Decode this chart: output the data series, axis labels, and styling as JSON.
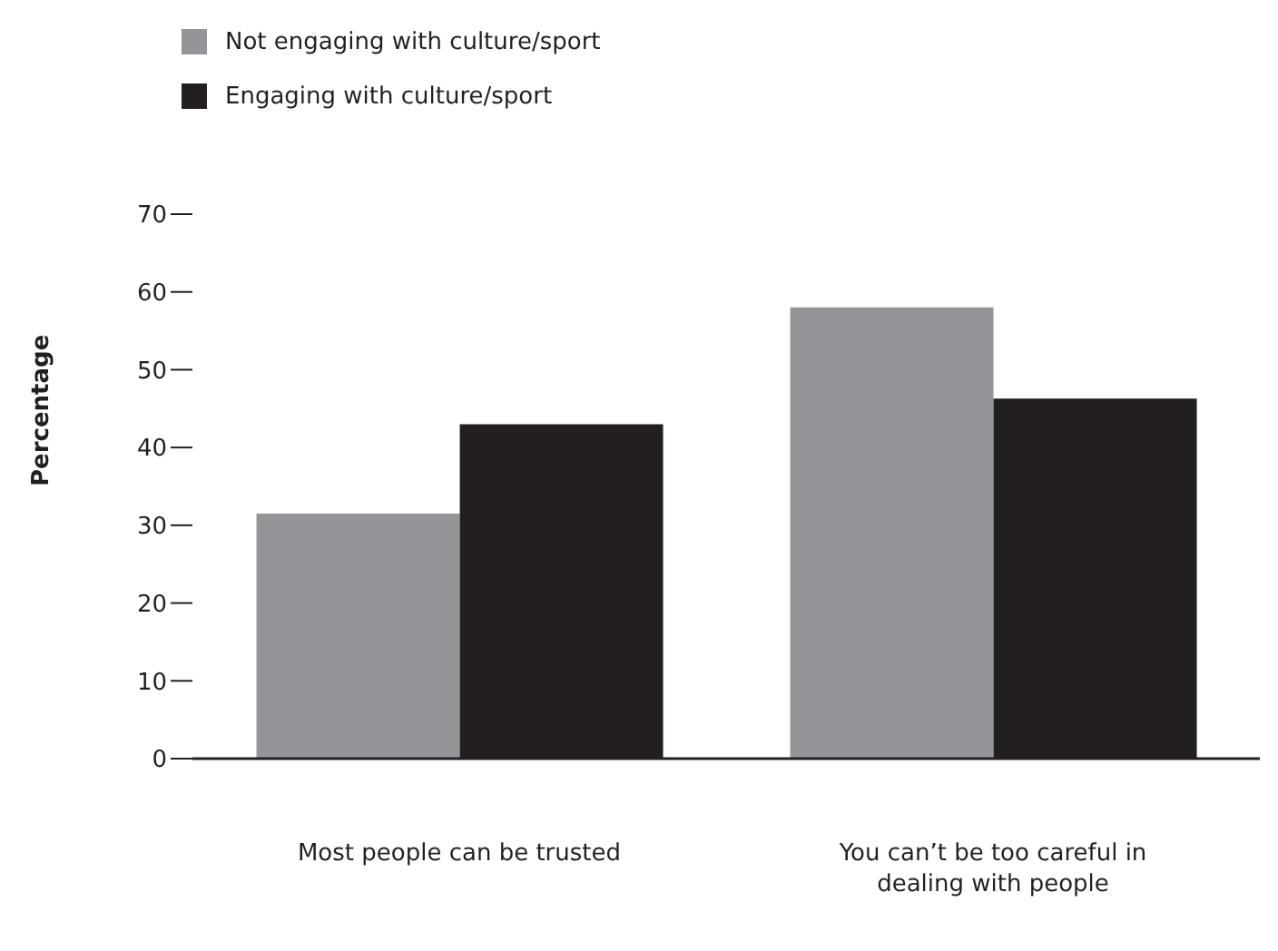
{
  "chart_data": {
    "type": "bar",
    "ylabel": "Percentage",
    "categories": [
      "Most people can be trusted",
      "You can’t be too careful in dealing with people"
    ],
    "series": [
      {
        "name": "Not engaging with culture/sport",
        "color": "#939598",
        "values": [
          31.5,
          58
        ]
      },
      {
        "name": "Engaging with culture/sport",
        "color": "#231f20",
        "values": [
          43,
          46.3
        ]
      }
    ],
    "ylim": [
      0,
      70
    ],
    "yticks": [
      0,
      10,
      20,
      30,
      40,
      50,
      60,
      70
    ],
    "grid": false,
    "legend": "top left"
  }
}
